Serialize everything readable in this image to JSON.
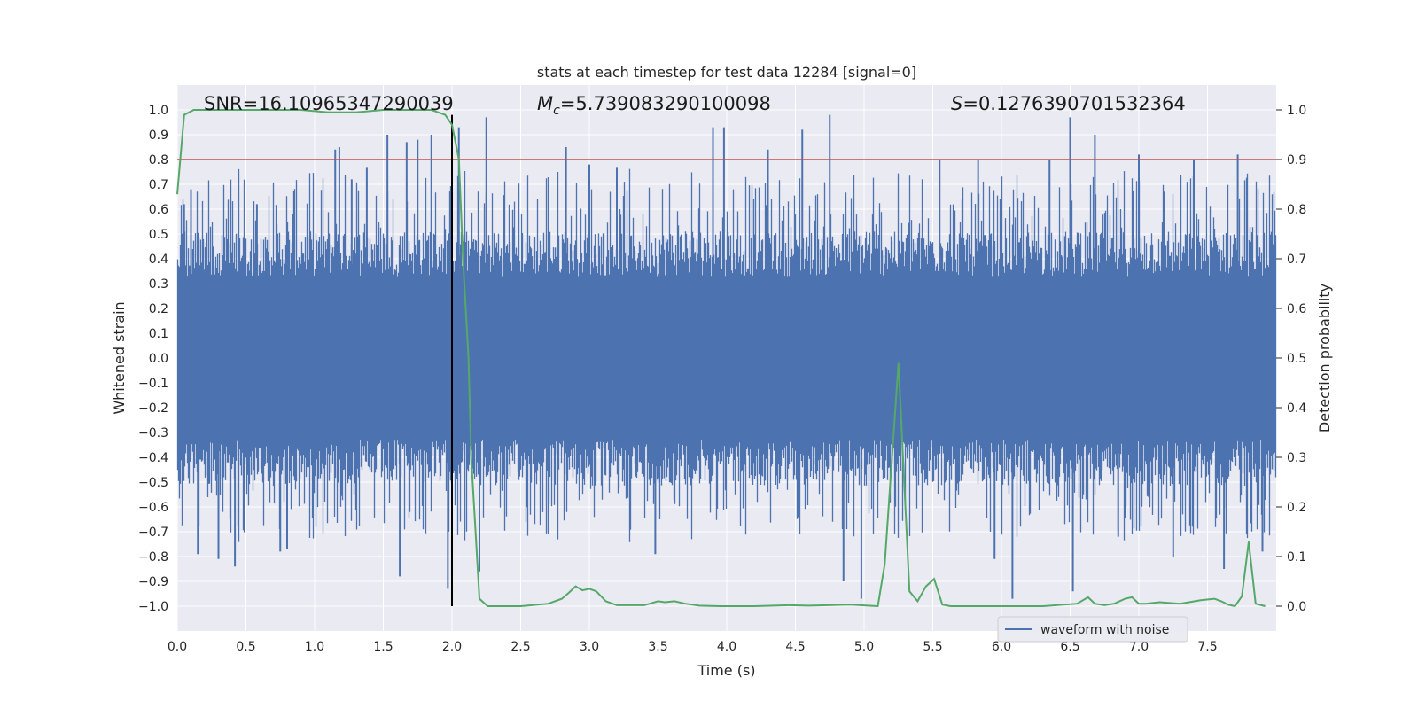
{
  "chart_data": {
    "type": "line",
    "title": "stats at each timestep for test data 12284 [signal=0]",
    "xlabel": "Time (s)",
    "ylabel": "Whitened strain",
    "y2label": "Detection probability",
    "xlim": [
      0.0,
      8.0
    ],
    "ylim": [
      -1.1,
      1.1
    ],
    "y2lim": [
      -0.05,
      1.05
    ],
    "x_ticks": [
      "0.0",
      "0.5",
      "1.0",
      "1.5",
      "2.0",
      "2.5",
      "3.0",
      "3.5",
      "4.0",
      "4.5",
      "5.0",
      "5.5",
      "6.0",
      "6.5",
      "7.0",
      "7.5"
    ],
    "y_ticks": [
      "1.0",
      "0.9",
      "0.8",
      "0.7",
      "0.6",
      "0.5",
      "0.4",
      "0.3",
      "0.2",
      "0.1",
      "0.0",
      "−0.1",
      "−0.2",
      "−0.3",
      "−0.4",
      "−0.5",
      "−0.6",
      "−0.7",
      "−0.8",
      "−0.9",
      "−1.0"
    ],
    "y2_ticks": [
      "1.0",
      "0.9",
      "0.8",
      "0.7",
      "0.6",
      "0.5",
      "0.4",
      "0.3",
      "0.2",
      "0.1",
      "0.0"
    ],
    "grid": true,
    "legend_position": "lower-right",
    "annotations": {
      "snr_prefix": "SNR=",
      "snr_value": "16.10965347290039",
      "mc_value": "=5.739083290100098",
      "s_value": "=0.1276390701532364"
    },
    "waveform_series": {
      "name": "waveform with noise",
      "color": "#4c72b0",
      "note_envelope_max": 0.97,
      "peak_lines": [
        {
          "x": 0.05,
          "y": 0.62
        },
        {
          "x": 0.1,
          "y": 0.68
        },
        {
          "x": 0.15,
          "y": -0.79
        },
        {
          "x": 0.3,
          "y": -0.81
        },
        {
          "x": 0.42,
          "y": -0.84
        },
        {
          "x": 0.58,
          "y": 0.62
        },
        {
          "x": 0.75,
          "y": -0.78
        },
        {
          "x": 0.8,
          "y": -0.77
        },
        {
          "x": 1.15,
          "y": 0.84
        },
        {
          "x": 1.18,
          "y": 0.85
        },
        {
          "x": 1.27,
          "y": 0.72
        },
        {
          "x": 1.38,
          "y": 0.77
        },
        {
          "x": 1.53,
          "y": 0.9
        },
        {
          "x": 1.62,
          "y": -0.88
        },
        {
          "x": 1.67,
          "y": 0.87
        },
        {
          "x": 1.75,
          "y": 0.88
        },
        {
          "x": 1.85,
          "y": 0.9
        },
        {
          "x": 1.97,
          "y": -0.93
        },
        {
          "x": 2.05,
          "y": 0.93
        },
        {
          "x": 2.2,
          "y": -0.86
        },
        {
          "x": 2.25,
          "y": 0.97
        },
        {
          "x": 2.83,
          "y": 0.85
        },
        {
          "x": 3.0,
          "y": 0.78
        },
        {
          "x": 3.2,
          "y": 0.77
        },
        {
          "x": 3.48,
          "y": -0.79
        },
        {
          "x": 3.9,
          "y": 0.93
        },
        {
          "x": 3.98,
          "y": 0.93
        },
        {
          "x": 4.3,
          "y": 0.84
        },
        {
          "x": 4.55,
          "y": 0.92
        },
        {
          "x": 4.75,
          "y": 0.98
        },
        {
          "x": 4.85,
          "y": -0.9
        },
        {
          "x": 4.98,
          "y": -0.97
        },
        {
          "x": 5.55,
          "y": 0.8
        },
        {
          "x": 5.83,
          "y": 0.8
        },
        {
          "x": 5.95,
          "y": -0.81
        },
        {
          "x": 6.08,
          "y": -0.97
        },
        {
          "x": 6.35,
          "y": 0.8
        },
        {
          "x": 6.5,
          "y": 0.97
        },
        {
          "x": 6.52,
          "y": -0.94
        },
        {
          "x": 6.68,
          "y": 0.9
        },
        {
          "x": 6.85,
          "y": -0.72
        },
        {
          "x": 7.0,
          "y": 0.82
        },
        {
          "x": 7.25,
          "y": -0.8
        },
        {
          "x": 7.4,
          "y": 0.8
        },
        {
          "x": 7.62,
          "y": -0.85
        },
        {
          "x": 7.72,
          "y": 0.82
        },
        {
          "x": 7.9,
          "y": -0.78
        }
      ]
    },
    "probability_series": {
      "color": "#55a868",
      "x": [
        0.0,
        0.05,
        0.12,
        0.3,
        0.6,
        0.9,
        1.1,
        1.3,
        1.5,
        1.7,
        1.85,
        1.95,
        2.0,
        2.05,
        2.08,
        2.12,
        2.14,
        2.2,
        2.26,
        2.5,
        2.7,
        2.8,
        2.85,
        2.9,
        2.95,
        3.0,
        3.05,
        3.12,
        3.2,
        3.4,
        3.5,
        3.55,
        3.62,
        3.7,
        3.8,
        3.95,
        4.2,
        4.45,
        4.6,
        4.9,
        5.1,
        5.15,
        5.25,
        5.33,
        5.39,
        5.45,
        5.51,
        5.57,
        5.63,
        5.8,
        6.0,
        6.3,
        6.55,
        6.63,
        6.68,
        6.75,
        6.82,
        6.9,
        6.95,
        7.0,
        7.05,
        7.15,
        7.3,
        7.45,
        7.55,
        7.6,
        7.65,
        7.7,
        7.75,
        7.8,
        7.85,
        7.92
      ],
      "values": [
        0.83,
        0.99,
        1.0,
        1.0,
        1.0,
        1.0,
        0.995,
        0.995,
        1.0,
        1.0,
        1.0,
        0.99,
        0.97,
        0.9,
        0.7,
        0.5,
        0.3,
        0.015,
        0.0,
        0.0,
        0.005,
        0.015,
        0.027,
        0.04,
        0.032,
        0.035,
        0.03,
        0.01,
        0.002,
        0.002,
        0.01,
        0.008,
        0.01,
        0.005,
        0.001,
        0.0,
        0.0,
        0.002,
        0.001,
        0.003,
        0.0,
        0.085,
        0.49,
        0.03,
        0.01,
        0.04,
        0.055,
        0.003,
        0.0,
        0.0,
        0.0,
        0.0,
        0.005,
        0.018,
        0.005,
        0.002,
        0.005,
        0.015,
        0.018,
        0.005,
        0.005,
        0.008,
        0.005,
        0.012,
        0.015,
        0.01,
        0.003,
        0.0,
        0.02,
        0.13,
        0.005,
        0.0
      ]
    },
    "threshold": {
      "y": 0.9,
      "color": "#c44e52"
    },
    "marker_line": {
      "x": 2.0,
      "y_from": -1.0,
      "y_to": 0.98,
      "color": "#000000"
    }
  }
}
